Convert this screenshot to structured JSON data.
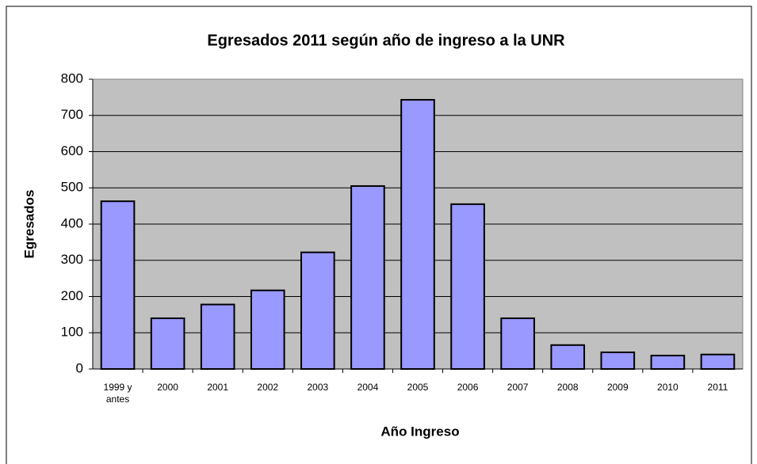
{
  "chart_data": {
    "type": "bar",
    "title": "Egresados 2011 según año de ingreso a la UNR",
    "x_label": "Año Ingreso",
    "y_label": "Egresados",
    "categories": [
      "1999 y antes",
      "2000",
      "2001",
      "2002",
      "2003",
      "2004",
      "2005",
      "2006",
      "2007",
      "2008",
      "2009",
      "2010",
      "2011"
    ],
    "values": [
      463,
      140,
      178,
      217,
      322,
      505,
      743,
      455,
      140,
      66,
      46,
      37,
      40
    ],
    "color": "#9999ff",
    "plot_background": "#c0c0c0",
    "ylim": [
      0,
      800
    ],
    "yticks": [
      0,
      100,
      200,
      300,
      400,
      500,
      600,
      700,
      800
    ],
    "grid": true
  }
}
